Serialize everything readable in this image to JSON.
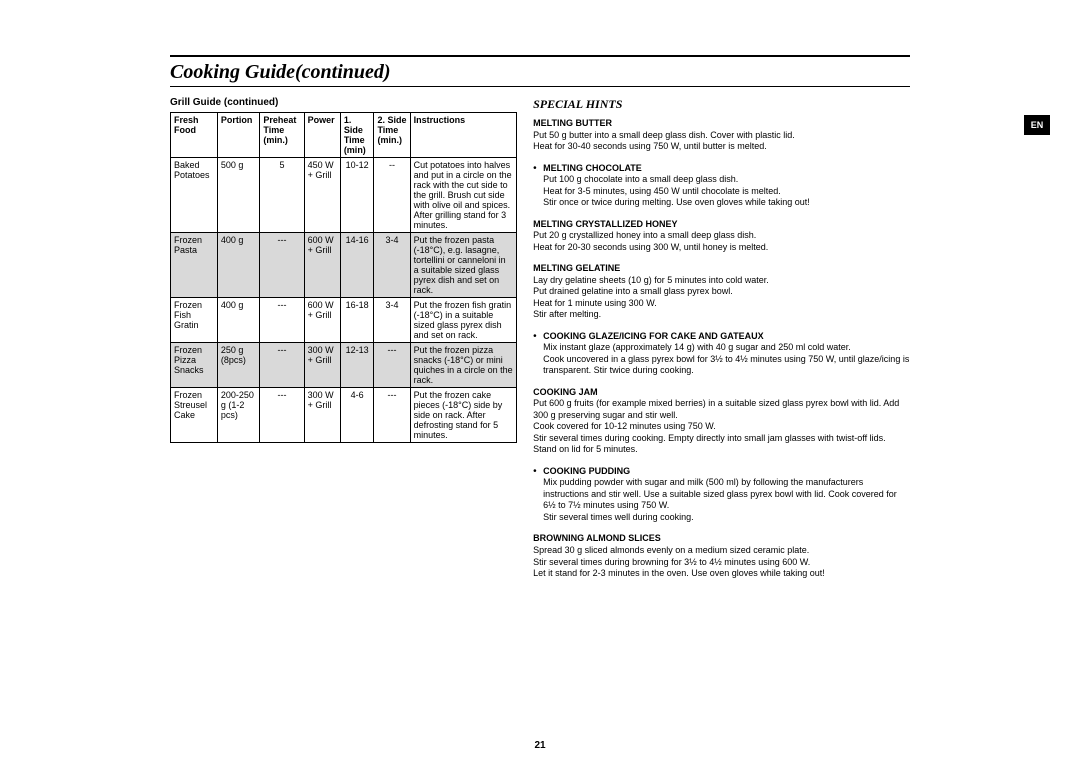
{
  "page_title": "Cooking Guide(continued)",
  "lang_tab": "EN",
  "page_number": "21",
  "left": {
    "subhead": "Grill Guide (continued)",
    "headers": {
      "food": "Fresh Food",
      "portion": "Portion",
      "preheat": "Preheat Time (min.)",
      "power": "Power",
      "side1": "1. Side Time (min)",
      "side2": "2. Side Time (min.)",
      "instructions": "Instructions"
    },
    "rows": [
      {
        "food": "Baked Potatoes",
        "portion": "500 g",
        "preheat": "5",
        "power": "450 W + Grill",
        "s1": "10-12",
        "s2": "--",
        "inst": "Cut potatoes into halves and put in a circle on the rack with the cut side to the grill. Brush cut side with olive oil and spices. After grilling stand for 3 minutes."
      },
      {
        "food": "Frozen Pasta",
        "portion": "400 g",
        "preheat": "---",
        "power": "600 W + Grill",
        "s1": "14-16",
        "s2": "3-4",
        "inst": "Put the frozen pasta (-18°C), e.g. lasagne, tortellini or canneloni in a suitable sized glass pyrex dish and set on rack."
      },
      {
        "food": "Frozen Fish Gratin",
        "portion": "400 g",
        "preheat": "---",
        "power": "600 W + Grill",
        "s1": "16-18",
        "s2": "3-4",
        "inst": "Put the frozen fish gratin (-18°C) in a suitable sized glass pyrex dish and set on rack."
      },
      {
        "food": "Frozen Pizza Snacks",
        "portion": "250 g (8pcs)",
        "preheat": "---",
        "power": "300 W + Grill",
        "s1": "12-13",
        "s2": "---",
        "inst": "Put the frozen pizza snacks (-18°C) or mini quiches in a circle on the rack."
      },
      {
        "food": "Frozen Streusel Cake",
        "portion": "200-250 g (1-2 pcs)",
        "preheat": "---",
        "power": "300 W + Grill",
        "s1": "4-6",
        "s2": "---",
        "inst": "Put the frozen cake pieces (-18°C) side by side on rack. After defrosting stand for 5 minutes."
      }
    ]
  },
  "right": {
    "section_head": "SPECIAL HINTS",
    "hints": [
      {
        "title": "MELTING BUTTER",
        "body": "Put 50 g butter into a small deep glass dish. Cover with plastic lid.\nHeat for 30-40 seconds using 750 W, until butter is melted.",
        "bullet": false
      },
      {
        "title": "MELTING CHOCOLATE",
        "body": "Put 100 g chocolate into a small deep glass dish.\nHeat for 3-5 minutes, using 450 W until chocolate is melted.\nStir once or twice during melting. Use oven gloves while taking out!",
        "bullet": true
      },
      {
        "title": "MELTING CRYSTALLIZED HONEY",
        "body": "Put 20 g crystallized honey into a small deep glass dish.\nHeat for 20-30 seconds using 300 W, until honey is melted.",
        "bullet": false
      },
      {
        "title": "MELTING GELATINE",
        "body": "Lay dry gelatine sheets (10 g) for 5 minutes into cold water.\nPut drained gelatine into a small glass pyrex bowl.\nHeat for 1 minute using 300 W.\nStir after melting.",
        "bullet": false
      },
      {
        "title": "COOKING GLAZE/ICING FOR CAKE AND GATEAUX",
        "body": "Mix instant glaze (approximately 14 g) with 40 g sugar and 250 ml cold water.\nCook uncovered in a glass pyrex bowl for 3½ to 4½ minutes using 750 W, until glaze/icing is transparent. Stir twice during cooking.",
        "bullet": true
      },
      {
        "title": "COOKING JAM",
        "body": "Put 600 g fruits (for example mixed berries) in a suitable sized glass pyrex bowl with lid. Add 300 g preserving sugar and stir well.\nCook covered for 10-12 minutes using 750 W.\nStir several times during cooking. Empty directly into small jam glasses with twist-off lids. Stand on lid for 5 minutes.",
        "bullet": false
      },
      {
        "title": "COOKING PUDDING",
        "body": "Mix pudding powder with sugar and milk (500 ml) by following the manufacturers instructions and stir well. Use a suitable sized glass pyrex bowl with lid. Cook covered for 6½ to 7½ minutes using 750 W.\nStir several times well during cooking.",
        "bullet": true
      },
      {
        "title": "BROWNING ALMOND SLICES",
        "body": "Spread 30 g sliced almonds evenly on a medium sized ceramic plate.\nStir several times during browning for 3½ to 4½ minutes using 600 W.\nLet it stand for 2-3 minutes in the oven. Use oven gloves while taking out!",
        "bullet": false
      }
    ]
  }
}
